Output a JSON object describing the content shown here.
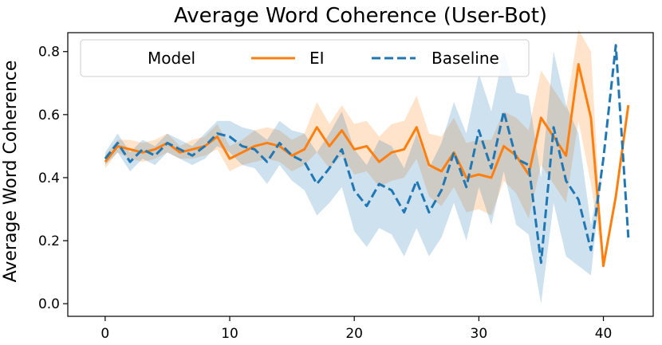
{
  "chart_data": {
    "type": "line",
    "title": "Average Word Coherence (User-Bot)",
    "xlabel": "",
    "ylabel": "Average Word Coherence",
    "xlim": [
      -3,
      44
    ],
    "ylim": [
      -0.04,
      0.86
    ],
    "xticks": [
      0,
      10,
      20,
      30,
      40
    ],
    "yticks": [
      0.0,
      0.2,
      0.4,
      0.6,
      0.8
    ],
    "xtick_labels": [
      "0",
      "10",
      "20",
      "30",
      "40"
    ],
    "ytick_labels": [
      "0.0",
      "0.2",
      "0.4",
      "0.6",
      "0.8"
    ],
    "grid": false,
    "legend": {
      "position": "top",
      "title": "Model",
      "entries": [
        "EI",
        "Baseline"
      ]
    },
    "series": [
      {
        "name": "EI",
        "color": "#ff7f0e",
        "style": "solid",
        "x": [
          0,
          1,
          2,
          3,
          4,
          5,
          6,
          7,
          8,
          9,
          10,
          11,
          12,
          13,
          14,
          15,
          16,
          17,
          18,
          19,
          20,
          21,
          22,
          23,
          24,
          25,
          26,
          27,
          28,
          29,
          30,
          31,
          32,
          33,
          34,
          35,
          36,
          37,
          38,
          39,
          40,
          41,
          42
        ],
        "values": [
          0.45,
          0.5,
          0.49,
          0.48,
          0.49,
          0.51,
          0.48,
          0.49,
          0.5,
          0.53,
          0.46,
          0.48,
          0.5,
          0.51,
          0.5,
          0.47,
          0.49,
          0.56,
          0.5,
          0.55,
          0.49,
          0.5,
          0.45,
          0.48,
          0.49,
          0.56,
          0.44,
          0.42,
          0.48,
          0.4,
          0.41,
          0.4,
          0.5,
          0.47,
          0.41,
          0.59,
          0.53,
          0.47,
          0.76,
          0.59,
          0.12,
          0.34,
          0.63
        ],
        "lower": [
          0.43,
          0.48,
          0.46,
          0.45,
          0.46,
          0.48,
          0.46,
          0.46,
          0.47,
          0.49,
          0.42,
          0.44,
          0.45,
          0.46,
          0.45,
          0.42,
          0.44,
          0.48,
          0.43,
          0.47,
          0.41,
          0.42,
          0.37,
          0.39,
          0.4,
          0.46,
          0.34,
          0.31,
          0.37,
          0.29,
          0.3,
          0.28,
          0.39,
          0.35,
          0.27,
          0.44,
          0.38,
          0.32,
          0.58,
          0.38,
          0.12,
          0.34,
          0.63
        ],
        "upper": [
          0.47,
          0.52,
          0.52,
          0.51,
          0.52,
          0.54,
          0.5,
          0.52,
          0.53,
          0.57,
          0.5,
          0.52,
          0.55,
          0.56,
          0.55,
          0.52,
          0.54,
          0.64,
          0.57,
          0.63,
          0.57,
          0.58,
          0.53,
          0.57,
          0.58,
          0.66,
          0.54,
          0.53,
          0.59,
          0.51,
          0.52,
          0.52,
          0.61,
          0.59,
          0.55,
          0.74,
          0.68,
          0.62,
          0.87,
          0.8,
          0.12,
          0.34,
          0.63
        ]
      },
      {
        "name": "Baseline",
        "color": "#1f77b4",
        "style": "dashed",
        "x": [
          0,
          1,
          2,
          3,
          4,
          5,
          6,
          7,
          8,
          9,
          10,
          11,
          12,
          13,
          14,
          15,
          16,
          17,
          18,
          19,
          20,
          21,
          22,
          23,
          24,
          25,
          26,
          27,
          28,
          29,
          30,
          31,
          32,
          33,
          34,
          35,
          36,
          37,
          38,
          39,
          40,
          41,
          42
        ],
        "values": [
          0.46,
          0.51,
          0.45,
          0.49,
          0.47,
          0.51,
          0.49,
          0.47,
          0.5,
          0.54,
          0.53,
          0.5,
          0.49,
          0.45,
          0.51,
          0.47,
          0.45,
          0.38,
          0.43,
          0.49,
          0.36,
          0.31,
          0.38,
          0.36,
          0.29,
          0.39,
          0.29,
          0.36,
          0.48,
          0.37,
          0.55,
          0.43,
          0.61,
          0.46,
          0.44,
          0.13,
          0.56,
          0.39,
          0.33,
          0.17,
          0.46,
          0.82,
          0.21
        ],
        "lower": [
          0.44,
          0.48,
          0.42,
          0.46,
          0.44,
          0.48,
          0.46,
          0.44,
          0.46,
          0.5,
          0.48,
          0.44,
          0.43,
          0.38,
          0.44,
          0.39,
          0.36,
          0.28,
          0.32,
          0.37,
          0.23,
          0.18,
          0.24,
          0.22,
          0.15,
          0.24,
          0.15,
          0.21,
          0.32,
          0.2,
          0.37,
          0.25,
          0.42,
          0.25,
          0.22,
          0.0,
          0.32,
          0.15,
          0.12,
          0.09,
          0.46,
          0.82,
          0.21
        ],
        "upper": [
          0.48,
          0.54,
          0.48,
          0.52,
          0.5,
          0.54,
          0.52,
          0.5,
          0.54,
          0.58,
          0.58,
          0.56,
          0.55,
          0.52,
          0.58,
          0.55,
          0.54,
          0.48,
          0.54,
          0.61,
          0.49,
          0.44,
          0.52,
          0.5,
          0.43,
          0.54,
          0.43,
          0.51,
          0.64,
          0.54,
          0.73,
          0.61,
          0.8,
          0.67,
          0.66,
          0.4,
          0.8,
          0.63,
          0.54,
          0.25,
          0.46,
          0.82,
          0.21
        ]
      }
    ]
  }
}
